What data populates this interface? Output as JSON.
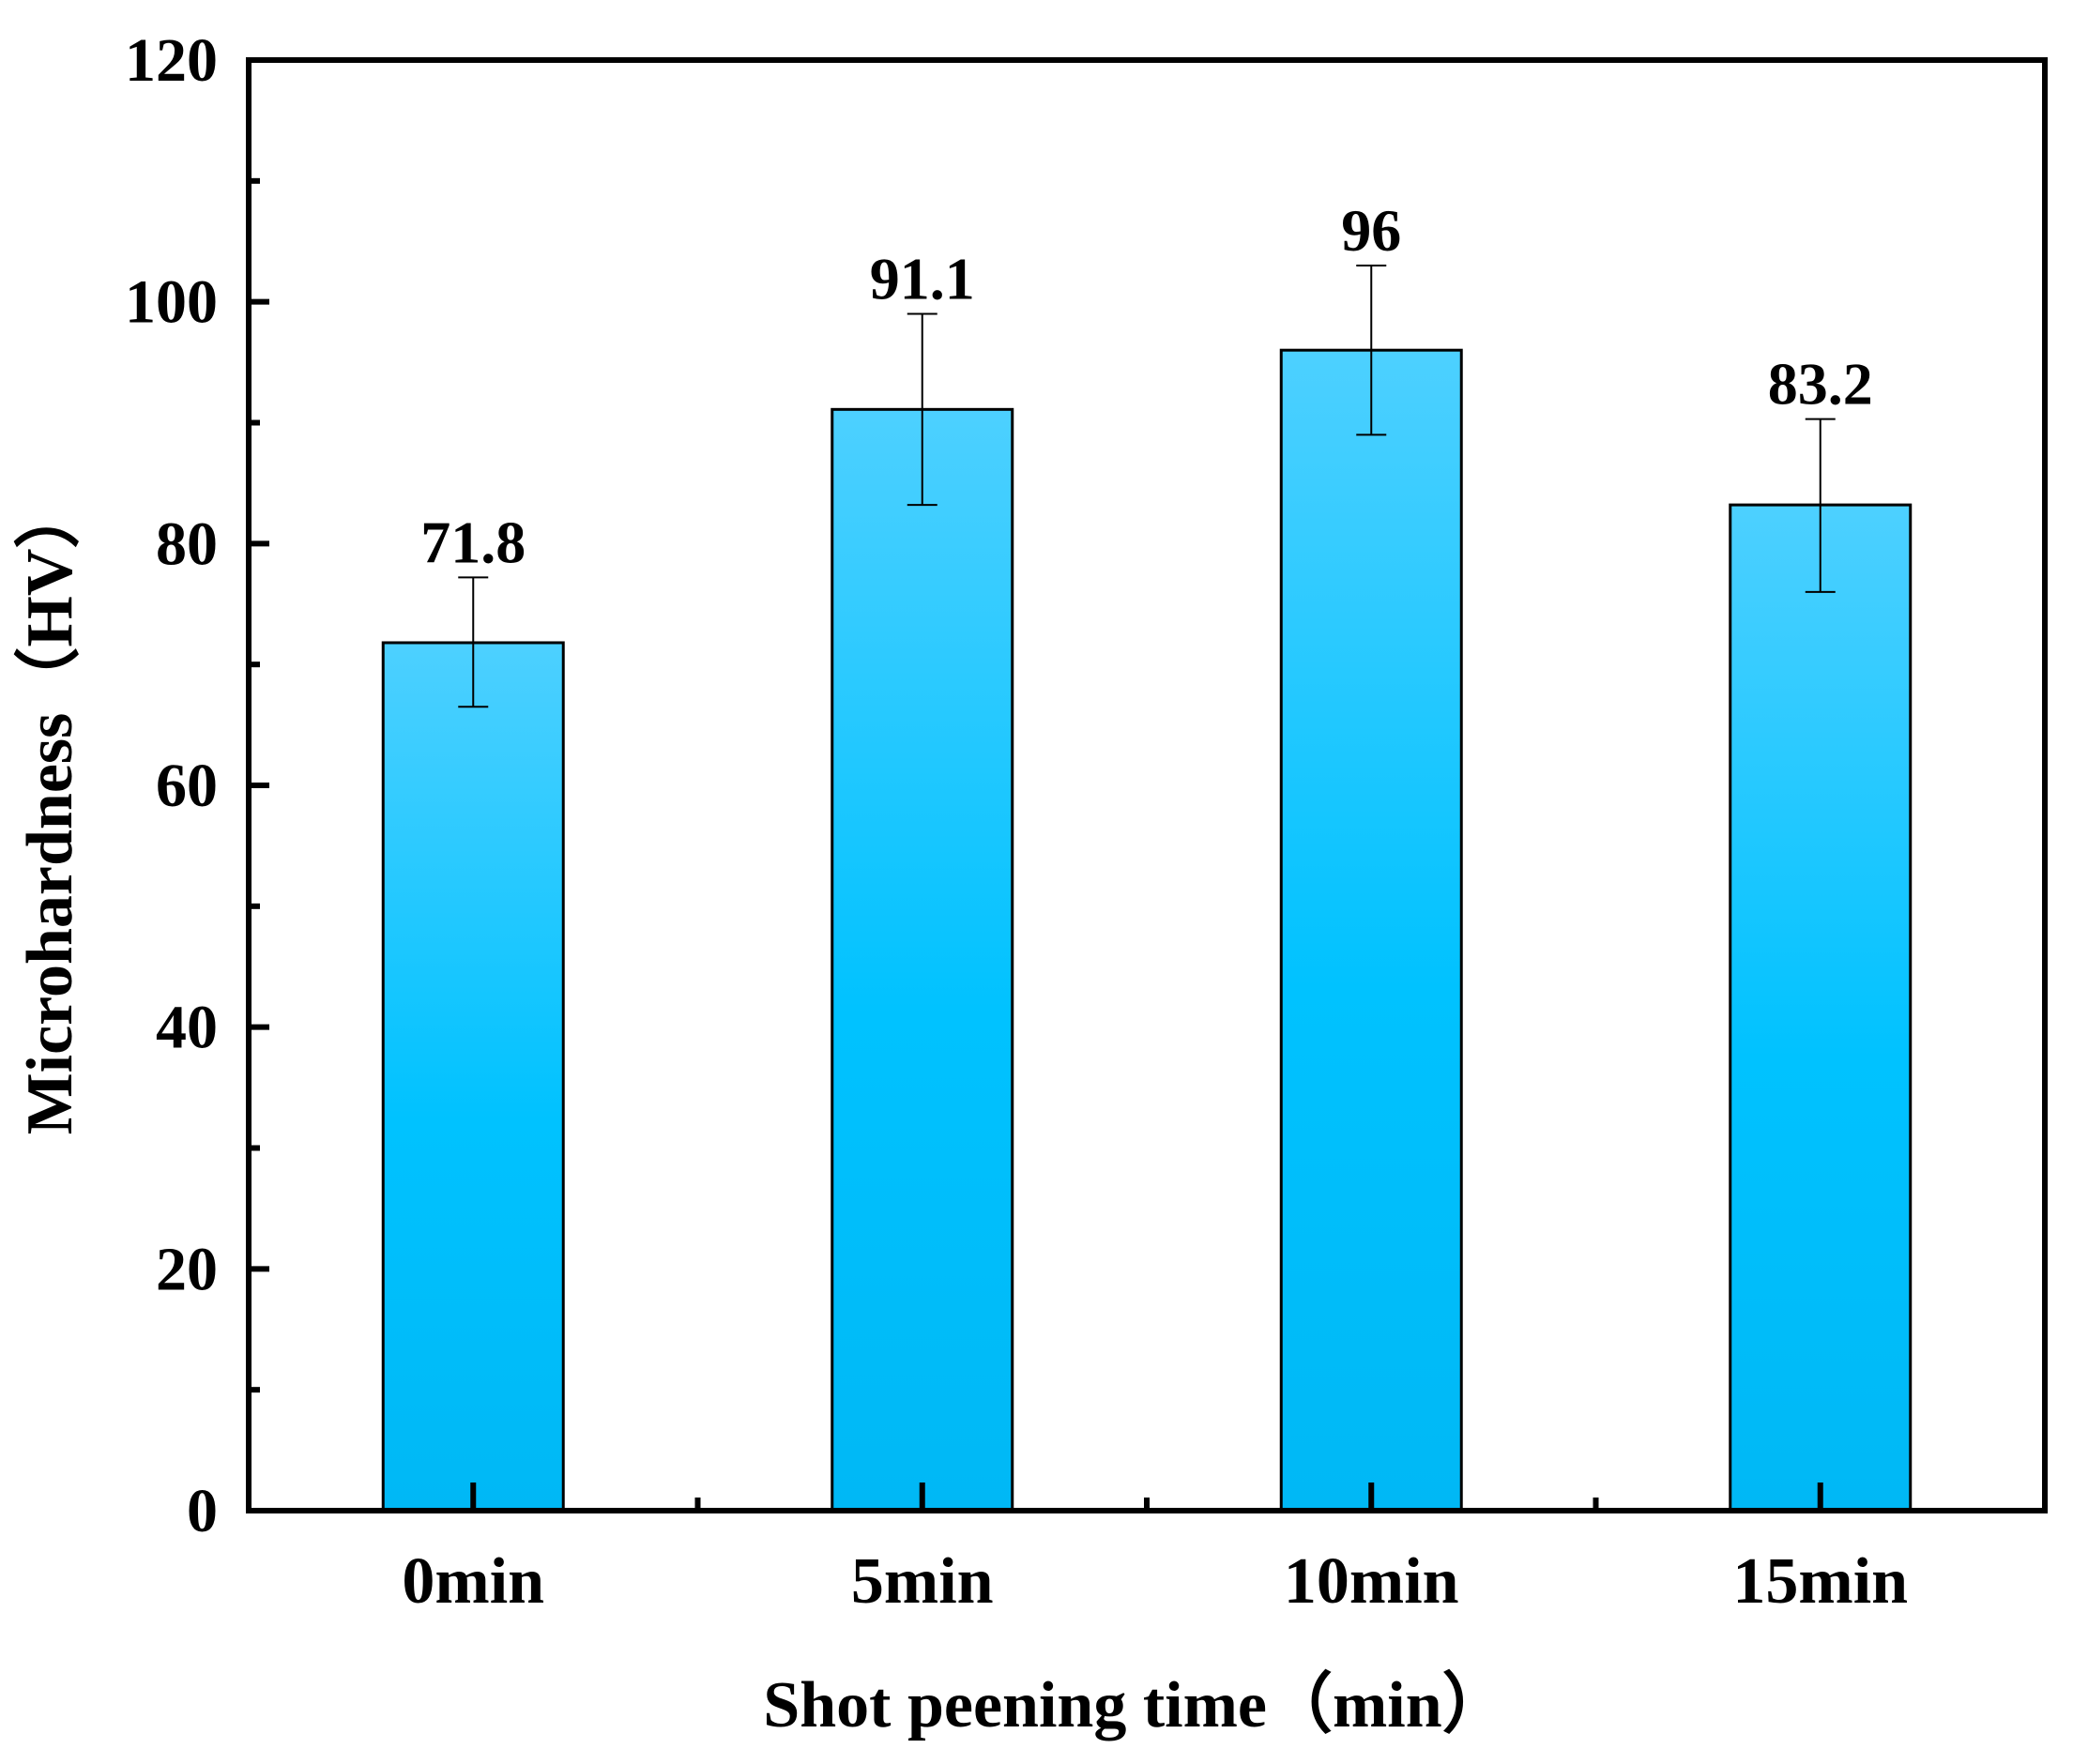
{
  "chart_data": {
    "type": "bar",
    "title": "",
    "xlabel": "Shot peening time（min）",
    "ylabel": "Microhardness（HV）",
    "categories": [
      "0min",
      "5min",
      "10min",
      "15min"
    ],
    "values": [
      71.8,
      91.1,
      96,
      83.2
    ],
    "value_labels": [
      "71.8",
      "91.1",
      "96",
      "83.2"
    ],
    "error_upper": [
      77.2,
      99,
      103,
      90.3
    ],
    "error_lower": [
      66.5,
      83.2,
      89,
      76
    ],
    "ylim": [
      0,
      120
    ],
    "yticks": [
      0,
      20,
      40,
      60,
      80,
      100,
      120
    ],
    "grid": false,
    "bar_color_top": "#4dd0ff",
    "bar_color_bottom": "#00b8f5",
    "bar_color_mid": "#00c2ff"
  }
}
